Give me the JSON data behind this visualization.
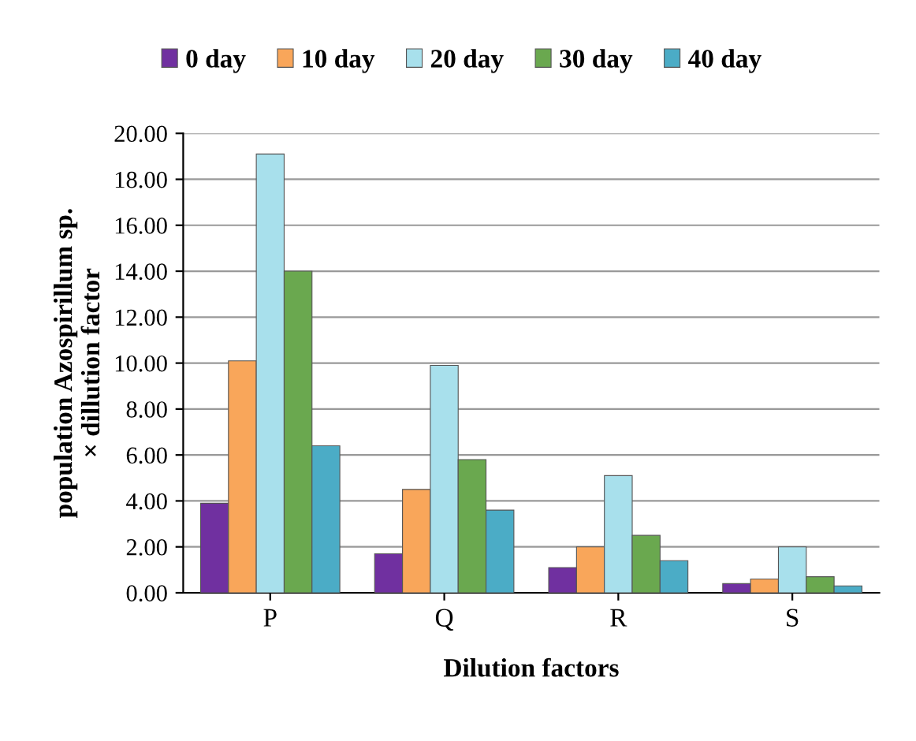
{
  "chart_data": {
    "type": "bar",
    "xlabel": "Dilution factors",
    "ylabel": "population Azospirillum sp.\n× dillution factor",
    "categories": [
      "P",
      "Q",
      "R",
      "S"
    ],
    "series": [
      {
        "name": "0 day",
        "color": "#7030a0",
        "values": [
          3.9,
          1.7,
          1.1,
          0.4
        ]
      },
      {
        "name": "10 day",
        "color": "#f9a65a",
        "values": [
          10.1,
          4.5,
          2.0,
          0.6
        ]
      },
      {
        "name": "20 day",
        "color": "#a8e0ec",
        "values": [
          19.1,
          9.9,
          5.1,
          2.0
        ]
      },
      {
        "name": "30 day",
        "color": "#6aa84f",
        "values": [
          14.0,
          5.8,
          2.5,
          0.7
        ]
      },
      {
        "name": "40 day",
        "color": "#4bacc6",
        "values": [
          6.4,
          3.6,
          1.4,
          0.3
        ]
      }
    ],
    "ylim": [
      0,
      20
    ],
    "yticks": [
      {
        "value": 0,
        "label": "0.00"
      },
      {
        "value": 2,
        "label": "2.00"
      },
      {
        "value": 4,
        "label": "4.00"
      },
      {
        "value": 6,
        "label": "6.00"
      },
      {
        "value": 8,
        "label": "8.00"
      },
      {
        "value": 10,
        "label": "10.00"
      },
      {
        "value": 12,
        "label": "12.00"
      },
      {
        "value": 14,
        "label": "14.00"
      },
      {
        "value": 16,
        "label": "16.00"
      },
      {
        "value": 18,
        "label": "18.00"
      },
      {
        "value": 20,
        "label": "20.00"
      }
    ],
    "grid": "y",
    "legend": "top"
  }
}
